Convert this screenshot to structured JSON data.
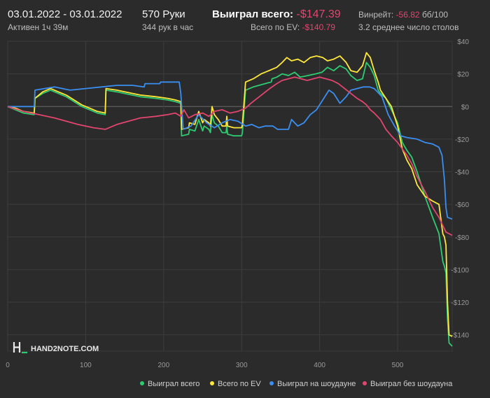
{
  "header": {
    "date_range": "03.01.2022 - 03.01.2022",
    "active": "Активен 1ч 39м",
    "hands": "570 Руки",
    "hands_per_hour": "344 рук в час",
    "won_label": "Выиграл всего:",
    "won_value": "-$147.39",
    "ev_label": "Всего по EV:",
    "ev_value": "-$140.79",
    "winrate_label": "Винрейт:",
    "winrate_value": "-56.82",
    "winrate_unit": "бб/100",
    "tables": "3.2 среднее число столов"
  },
  "logo": "HAND2NOTE.COM",
  "colors": {
    "won": "#2ecc71",
    "ev": "#ffe83a",
    "showdown": "#3a8ef0",
    "nonshowdown": "#e2456e",
    "negative": "#e2456e",
    "grid": "#3d3d3d",
    "zero": "#6a6a6a"
  },
  "chart_data": {
    "type": "line",
    "xlim": [
      0,
      570
    ],
    "ylim": [
      -150,
      40
    ],
    "x_ticks": [
      0,
      100,
      200,
      300,
      400,
      500
    ],
    "y_ticks": [
      40,
      20,
      0,
      -20,
      -40,
      -60,
      -80,
      -100,
      -120,
      -140
    ],
    "y_tick_labels": [
      "$40",
      "$20",
      "$0",
      "-$20",
      "-$40",
      "-$60",
      "-$80",
      "-$100",
      "-$120",
      "-$140"
    ],
    "grid": true,
    "legend": "bottom-right",
    "series": [
      {
        "name": "Выиграл всего",
        "key": "won",
        "points": [
          [
            0,
            0
          ],
          [
            10,
            -2
          ],
          [
            20,
            -4
          ],
          [
            34,
            -5
          ],
          [
            35,
            5
          ],
          [
            45,
            8
          ],
          [
            55,
            10
          ],
          [
            65,
            8
          ],
          [
            75,
            6
          ],
          [
            85,
            3
          ],
          [
            95,
            0
          ],
          [
            105,
            -2
          ],
          [
            115,
            -4
          ],
          [
            125,
            -5
          ],
          [
            126,
            10
          ],
          [
            140,
            9
          ],
          [
            150,
            8
          ],
          [
            170,
            6
          ],
          [
            190,
            5
          ],
          [
            205,
            4
          ],
          [
            215,
            3
          ],
          [
            222,
            2
          ],
          [
            223,
            -18
          ],
          [
            232,
            -17
          ],
          [
            233,
            -14
          ],
          [
            240,
            -15
          ],
          [
            245,
            -8
          ],
          [
            250,
            -15
          ],
          [
            252,
            -12
          ],
          [
            258,
            -14
          ],
          [
            260,
            -16
          ],
          [
            262,
            -5
          ],
          [
            265,
            -10
          ],
          [
            270,
            -12
          ],
          [
            275,
            -16
          ],
          [
            280,
            -16
          ],
          [
            281,
            -12
          ],
          [
            282,
            -17
          ],
          [
            290,
            -18
          ],
          [
            300,
            -18
          ],
          [
            301,
            -16
          ],
          [
            305,
            10
          ],
          [
            315,
            12
          ],
          [
            330,
            14
          ],
          [
            338,
            15
          ],
          [
            339,
            17
          ],
          [
            345,
            18
          ],
          [
            352,
            20
          ],
          [
            360,
            19
          ],
          [
            368,
            21
          ],
          [
            375,
            18
          ],
          [
            385,
            19
          ],
          [
            395,
            20
          ],
          [
            403,
            21
          ],
          [
            410,
            24
          ],
          [
            418,
            22
          ],
          [
            426,
            25
          ],
          [
            434,
            23
          ],
          [
            440,
            19
          ],
          [
            448,
            16
          ],
          [
            455,
            17
          ],
          [
            460,
            27
          ],
          [
            465,
            24
          ],
          [
            470,
            19
          ],
          [
            475,
            10
          ],
          [
            478,
            8
          ],
          [
            485,
            5
          ],
          [
            492,
            -2
          ],
          [
            500,
            -10
          ],
          [
            506,
            -22
          ],
          [
            512,
            -27
          ],
          [
            518,
            -31
          ],
          [
            525,
            -40
          ],
          [
            535,
            -55
          ],
          [
            545,
            -68
          ],
          [
            553,
            -78
          ],
          [
            558,
            -95
          ],
          [
            560,
            -98
          ],
          [
            562,
            -102
          ],
          [
            564,
            -130
          ],
          [
            566,
            -145
          ],
          [
            570,
            -147
          ]
        ]
      },
      {
        "name": "Всего по EV",
        "key": "ev",
        "points": [
          [
            0,
            0
          ],
          [
            10,
            -1
          ],
          [
            20,
            -3
          ],
          [
            34,
            -4
          ],
          [
            35,
            5
          ],
          [
            45,
            9
          ],
          [
            55,
            11
          ],
          [
            65,
            9
          ],
          [
            75,
            7
          ],
          [
            85,
            4
          ],
          [
            95,
            1
          ],
          [
            105,
            -1
          ],
          [
            115,
            -3
          ],
          [
            125,
            -4
          ],
          [
            126,
            11
          ],
          [
            140,
            10
          ],
          [
            150,
            9
          ],
          [
            170,
            7
          ],
          [
            190,
            6
          ],
          [
            205,
            5
          ],
          [
            215,
            4
          ],
          [
            222,
            3
          ],
          [
            223,
            -14
          ],
          [
            232,
            -13
          ],
          [
            233,
            -10
          ],
          [
            240,
            -11
          ],
          [
            245,
            -3
          ],
          [
            250,
            -10
          ],
          [
            252,
            -8
          ],
          [
            258,
            -10
          ],
          [
            260,
            -12
          ],
          [
            262,
            0
          ],
          [
            265,
            -5
          ],
          [
            270,
            -8
          ],
          [
            275,
            -12
          ],
          [
            280,
            -12
          ],
          [
            281,
            -6
          ],
          [
            282,
            -12
          ],
          [
            290,
            -13
          ],
          [
            300,
            -13
          ],
          [
            301,
            -11
          ],
          [
            305,
            15
          ],
          [
            315,
            17
          ],
          [
            325,
            20
          ],
          [
            335,
            22
          ],
          [
            345,
            24
          ],
          [
            352,
            27
          ],
          [
            358,
            30
          ],
          [
            364,
            28
          ],
          [
            372,
            29
          ],
          [
            380,
            27
          ],
          [
            388,
            30
          ],
          [
            396,
            31
          ],
          [
            404,
            30
          ],
          [
            410,
            28
          ],
          [
            418,
            29
          ],
          [
            426,
            31
          ],
          [
            434,
            27
          ],
          [
            440,
            22
          ],
          [
            448,
            21
          ],
          [
            455,
            25
          ],
          [
            460,
            33
          ],
          [
            465,
            30
          ],
          [
            470,
            22
          ],
          [
            475,
            15
          ],
          [
            478,
            10
          ],
          [
            485,
            5
          ],
          [
            492,
            0
          ],
          [
            500,
            -12
          ],
          [
            506,
            -26
          ],
          [
            512,
            -33
          ],
          [
            518,
            -38
          ],
          [
            525,
            -48
          ],
          [
            535,
            -55
          ],
          [
            545,
            -58
          ],
          [
            553,
            -60
          ],
          [
            558,
            -78
          ],
          [
            560,
            -80
          ],
          [
            562,
            -85
          ],
          [
            564,
            -120
          ],
          [
            566,
            -140
          ],
          [
            570,
            -141
          ]
        ]
      },
      {
        "name": "Выиграл на шоудауне",
        "key": "showdown",
        "points": [
          [
            0,
            0
          ],
          [
            34,
            0
          ],
          [
            35,
            10
          ],
          [
            60,
            12
          ],
          [
            80,
            10
          ],
          [
            100,
            11
          ],
          [
            120,
            12
          ],
          [
            140,
            13
          ],
          [
            160,
            13
          ],
          [
            175,
            12
          ],
          [
            176,
            14
          ],
          [
            195,
            14
          ],
          [
            196,
            15
          ],
          [
            220,
            15
          ],
          [
            222,
            8
          ],
          [
            225,
            -14
          ],
          [
            235,
            -12
          ],
          [
            245,
            -5
          ],
          [
            255,
            -10
          ],
          [
            265,
            -13
          ],
          [
            275,
            -10
          ],
          [
            285,
            -8
          ],
          [
            295,
            -9
          ],
          [
            305,
            -12
          ],
          [
            313,
            -11
          ],
          [
            322,
            -13
          ],
          [
            330,
            -12
          ],
          [
            340,
            -12
          ],
          [
            346,
            -14
          ],
          [
            360,
            -14
          ],
          [
            364,
            -8
          ],
          [
            372,
            -12
          ],
          [
            380,
            -10
          ],
          [
            388,
            -5
          ],
          [
            396,
            -2
          ],
          [
            404,
            4
          ],
          [
            412,
            10
          ],
          [
            418,
            8
          ],
          [
            426,
            2
          ],
          [
            434,
            6
          ],
          [
            440,
            10
          ],
          [
            448,
            11
          ],
          [
            456,
            12
          ],
          [
            464,
            12
          ],
          [
            470,
            11
          ],
          [
            480,
            6
          ],
          [
            488,
            -5
          ],
          [
            496,
            -12
          ],
          [
            504,
            -18
          ],
          [
            512,
            -19
          ],
          [
            525,
            -20
          ],
          [
            535,
            -22
          ],
          [
            545,
            -23
          ],
          [
            553,
            -25
          ],
          [
            557,
            -30
          ],
          [
            560,
            -45
          ],
          [
            562,
            -62
          ],
          [
            564,
            -68
          ],
          [
            570,
            -69
          ]
        ]
      },
      {
        "name": "Выиграл без шоудауна",
        "key": "nonshowdown",
        "points": [
          [
            0,
            0
          ],
          [
            20,
            -3
          ],
          [
            40,
            -5
          ],
          [
            60,
            -7
          ],
          [
            75,
            -9
          ],
          [
            90,
            -11
          ],
          [
            110,
            -13
          ],
          [
            125,
            -14
          ],
          [
            140,
            -11
          ],
          [
            155,
            -9
          ],
          [
            170,
            -7
          ],
          [
            190,
            -6
          ],
          [
            205,
            -5
          ],
          [
            215,
            -4
          ],
          [
            222,
            -6
          ],
          [
            226,
            -2
          ],
          [
            232,
            -7
          ],
          [
            240,
            -5
          ],
          [
            250,
            -4
          ],
          [
            258,
            -6
          ],
          [
            265,
            -3
          ],
          [
            275,
            -2
          ],
          [
            285,
            -4
          ],
          [
            295,
            -3
          ],
          [
            300,
            -2
          ],
          [
            305,
            -1
          ],
          [
            312,
            2
          ],
          [
            320,
            5
          ],
          [
            328,
            8
          ],
          [
            336,
            11
          ],
          [
            345,
            14
          ],
          [
            352,
            16
          ],
          [
            360,
            17
          ],
          [
            368,
            18
          ],
          [
            376,
            17
          ],
          [
            384,
            16
          ],
          [
            392,
            17
          ],
          [
            400,
            18
          ],
          [
            408,
            17
          ],
          [
            416,
            16
          ],
          [
            424,
            14
          ],
          [
            432,
            11
          ],
          [
            440,
            8
          ],
          [
            448,
            5
          ],
          [
            455,
            3
          ],
          [
            460,
            1
          ],
          [
            465,
            -2
          ],
          [
            470,
            -4
          ],
          [
            478,
            -8
          ],
          [
            485,
            -14
          ],
          [
            492,
            -18
          ],
          [
            500,
            -22
          ],
          [
            506,
            -26
          ],
          [
            512,
            -30
          ],
          [
            518,
            -35
          ],
          [
            525,
            -43
          ],
          [
            535,
            -52
          ],
          [
            545,
            -62
          ],
          [
            553,
            -68
          ],
          [
            558,
            -73
          ],
          [
            562,
            -77
          ],
          [
            566,
            -78
          ],
          [
            570,
            -79
          ]
        ]
      }
    ]
  },
  "legend_items": [
    {
      "label": "Выиграл всего",
      "key": "won"
    },
    {
      "label": "Всего по EV",
      "key": "ev"
    },
    {
      "label": "Выиграл на шоудауне",
      "key": "showdown"
    },
    {
      "label": "Выиграл без шоудауна",
      "key": "nonshowdown"
    }
  ]
}
